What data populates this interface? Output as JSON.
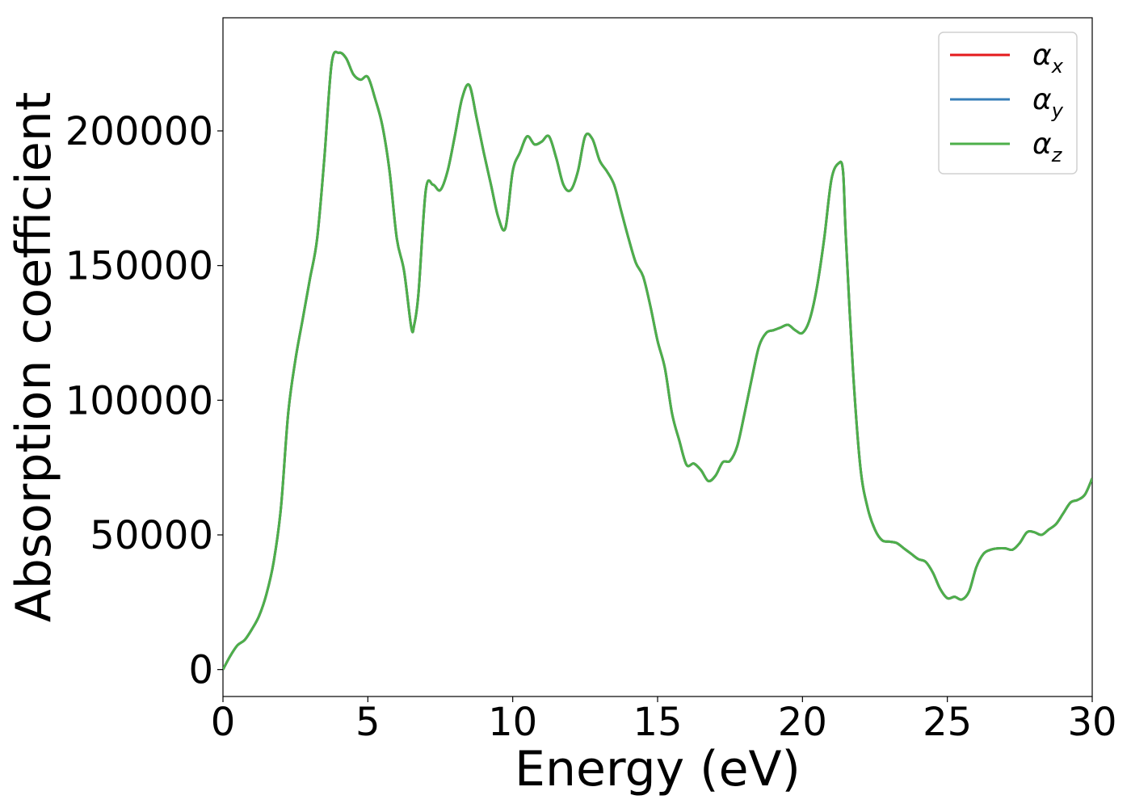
{
  "chart_data": {
    "type": "line",
    "title": "",
    "xlabel": "Energy (eV)",
    "ylabel": "Absorption coefficient",
    "xlim": [
      0,
      30
    ],
    "ylim": [
      -10000,
      242000
    ],
    "xticks": [
      0,
      5,
      10,
      15,
      20,
      25,
      30
    ],
    "yticks": [
      0,
      50000,
      100000,
      150000,
      200000
    ],
    "xtick_labels": [
      "0",
      "5",
      "10",
      "15",
      "20",
      "25",
      "30"
    ],
    "ytick_labels": [
      "0",
      "50000",
      "100000",
      "150000",
      "200000"
    ],
    "grid": false,
    "legend_position": "top-right",
    "series": [
      {
        "name": "α",
        "subscript": "x",
        "color": "#e41a1c"
      },
      {
        "name": "α",
        "subscript": "y",
        "color": "#377eb8"
      },
      {
        "name": "α",
        "subscript": "z",
        "color": "#4daf4a"
      }
    ],
    "x": [
      0,
      0.25,
      0.5,
      0.75,
      1.0,
      1.25,
      1.5,
      1.75,
      2.0,
      2.25,
      2.5,
      2.75,
      3.0,
      3.25,
      3.5,
      3.75,
      4.0,
      4.25,
      4.5,
      4.75,
      5.0,
      5.25,
      5.5,
      5.75,
      6.0,
      6.25,
      6.5,
      6.6,
      6.75,
      7.0,
      7.25,
      7.5,
      7.75,
      8.0,
      8.25,
      8.5,
      8.75,
      9.0,
      9.25,
      9.5,
      9.75,
      10.0,
      10.25,
      10.5,
      10.75,
      11.0,
      11.25,
      11.5,
      11.75,
      12.0,
      12.25,
      12.5,
      12.75,
      13.0,
      13.25,
      13.5,
      13.75,
      14.0,
      14.25,
      14.5,
      14.75,
      15.0,
      15.25,
      15.5,
      15.75,
      16.0,
      16.25,
      16.5,
      16.75,
      17.0,
      17.25,
      17.5,
      17.75,
      18.0,
      18.25,
      18.5,
      18.75,
      19.0,
      19.25,
      19.5,
      19.75,
      20.0,
      20.25,
      20.5,
      20.75,
      21.0,
      21.25,
      21.4,
      21.5,
      21.75,
      22.0,
      22.25,
      22.5,
      22.75,
      23.0,
      23.25,
      23.5,
      23.75,
      24.0,
      24.25,
      24.5,
      24.75,
      25.0,
      25.25,
      25.5,
      25.75,
      26.0,
      26.25,
      26.5,
      26.75,
      27.0,
      27.25,
      27.5,
      27.75,
      28.0,
      28.25,
      28.5,
      28.75,
      29.0,
      29.25,
      29.5,
      29.75,
      30.0
    ],
    "y": [
      0,
      5000,
      9000,
      11000,
      15000,
      20000,
      28000,
      40000,
      60000,
      95000,
      115000,
      130000,
      145000,
      160000,
      190000,
      225000,
      229000,
      227000,
      221000,
      219000,
      220000,
      212000,
      202000,
      185000,
      160000,
      148000,
      127000,
      128000,
      140000,
      178000,
      180000,
      178000,
      185000,
      198000,
      212000,
      217000,
      205000,
      192000,
      180000,
      168000,
      164000,
      185000,
      192000,
      198000,
      195000,
      196000,
      198000,
      190000,
      180000,
      178000,
      185000,
      198000,
      197000,
      189000,
      185000,
      180000,
      170000,
      160000,
      151000,
      146000,
      135000,
      122000,
      112000,
      95000,
      85000,
      76000,
      76500,
      74000,
      70000,
      72000,
      77000,
      77500,
      83000,
      95000,
      108000,
      120000,
      125000,
      126000,
      127000,
      128000,
      126000,
      125000,
      130000,
      142000,
      160000,
      182000,
      188000,
      185000,
      160000,
      110000,
      75000,
      60000,
      52000,
      48000,
      47500,
      47000,
      45000,
      43000,
      41000,
      40000,
      36000,
      30000,
      26500,
      27000,
      26000,
      29000,
      38000,
      43000,
      44500,
      45000,
      45000,
      44500,
      47000,
      51000,
      51000,
      50000,
      52000,
      54000,
      58000,
      62000,
      63000,
      65000,
      71000
    ]
  }
}
